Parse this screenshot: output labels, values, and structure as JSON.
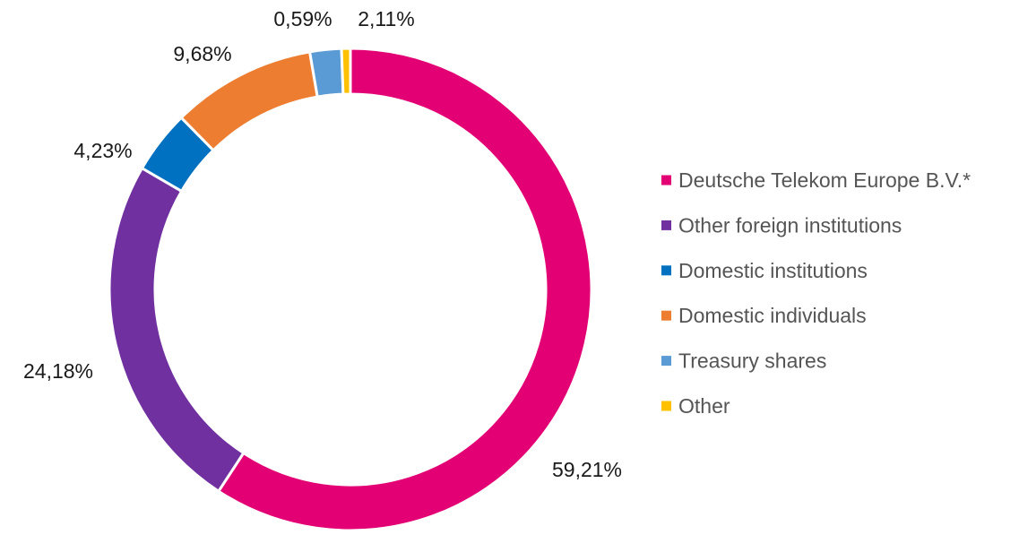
{
  "chart_data": {
    "type": "pie",
    "variant": "donut",
    "title": "",
    "legend_position": "right",
    "slices": [
      {
        "name": "Deutsche Telekom Europe B.V.*",
        "value": 59.21,
        "label": "59,21%",
        "color": "#e20074"
      },
      {
        "name": "Other foreign institutions",
        "value": 24.18,
        "label": "24,18%",
        "color": "#7030a0"
      },
      {
        "name": "Domestic institutions",
        "value": 4.23,
        "label": "4,23%",
        "color": "#0070c0"
      },
      {
        "name": "Domestic individuals",
        "value": 9.68,
        "label": "9,68%",
        "color": "#ed7d31"
      },
      {
        "name": "Treasury shares",
        "value": 2.11,
        "label": "2,11%",
        "color": "#5b9bd5"
      },
      {
        "name": "Other",
        "value": 0.59,
        "label": "0,59%",
        "color": "#ffc000"
      }
    ]
  }
}
